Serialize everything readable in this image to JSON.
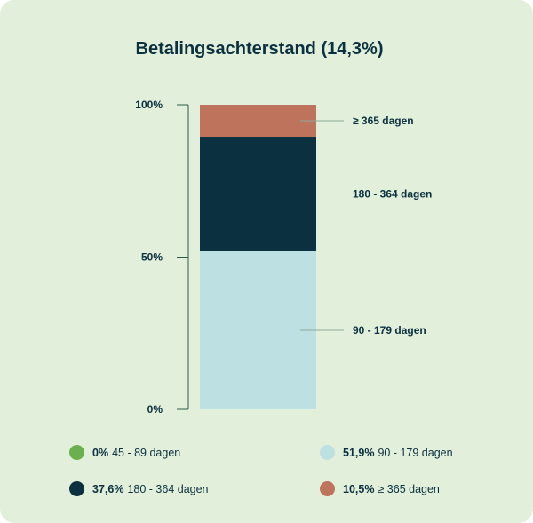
{
  "title": "Betalingsachterstand (14,3%)",
  "colors": {
    "background": "#e2efda",
    "text": "#0b3040",
    "axis": "#2e5a4a",
    "leader": "#8fa89a"
  },
  "chart_data": {
    "type": "bar",
    "stacked": true,
    "title": "Betalingsachterstand (14,3%)",
    "ylim": [
      0,
      100
    ],
    "y_ticks": [
      {
        "value": 0,
        "label": "0%"
      },
      {
        "value": 50,
        "label": "50%"
      },
      {
        "value": 100,
        "label": "100%"
      }
    ],
    "series": [
      {
        "name": "45 - 89 dagen",
        "value": 0,
        "pct_label": "0%",
        "color": "#6ab04c",
        "bar_label": ""
      },
      {
        "name": "90 - 179 dagen",
        "value": 51.9,
        "pct_label": "51,9%",
        "color": "#bde0e3",
        "bar_label": "90 - 179 dagen"
      },
      {
        "name": "180 - 364 dagen",
        "value": 37.6,
        "pct_label": "37,6%",
        "color": "#0b3040",
        "bar_label": "180 - 364 dagen"
      },
      {
        "name": "≥ 365 dagen",
        "value": 10.5,
        "pct_label": "10,5%",
        "color": "#bd735c",
        "bar_label": "≥ 365 dagen"
      }
    ],
    "legend_order": [
      0,
      1,
      2,
      3
    ],
    "legend_position": "bottom"
  }
}
